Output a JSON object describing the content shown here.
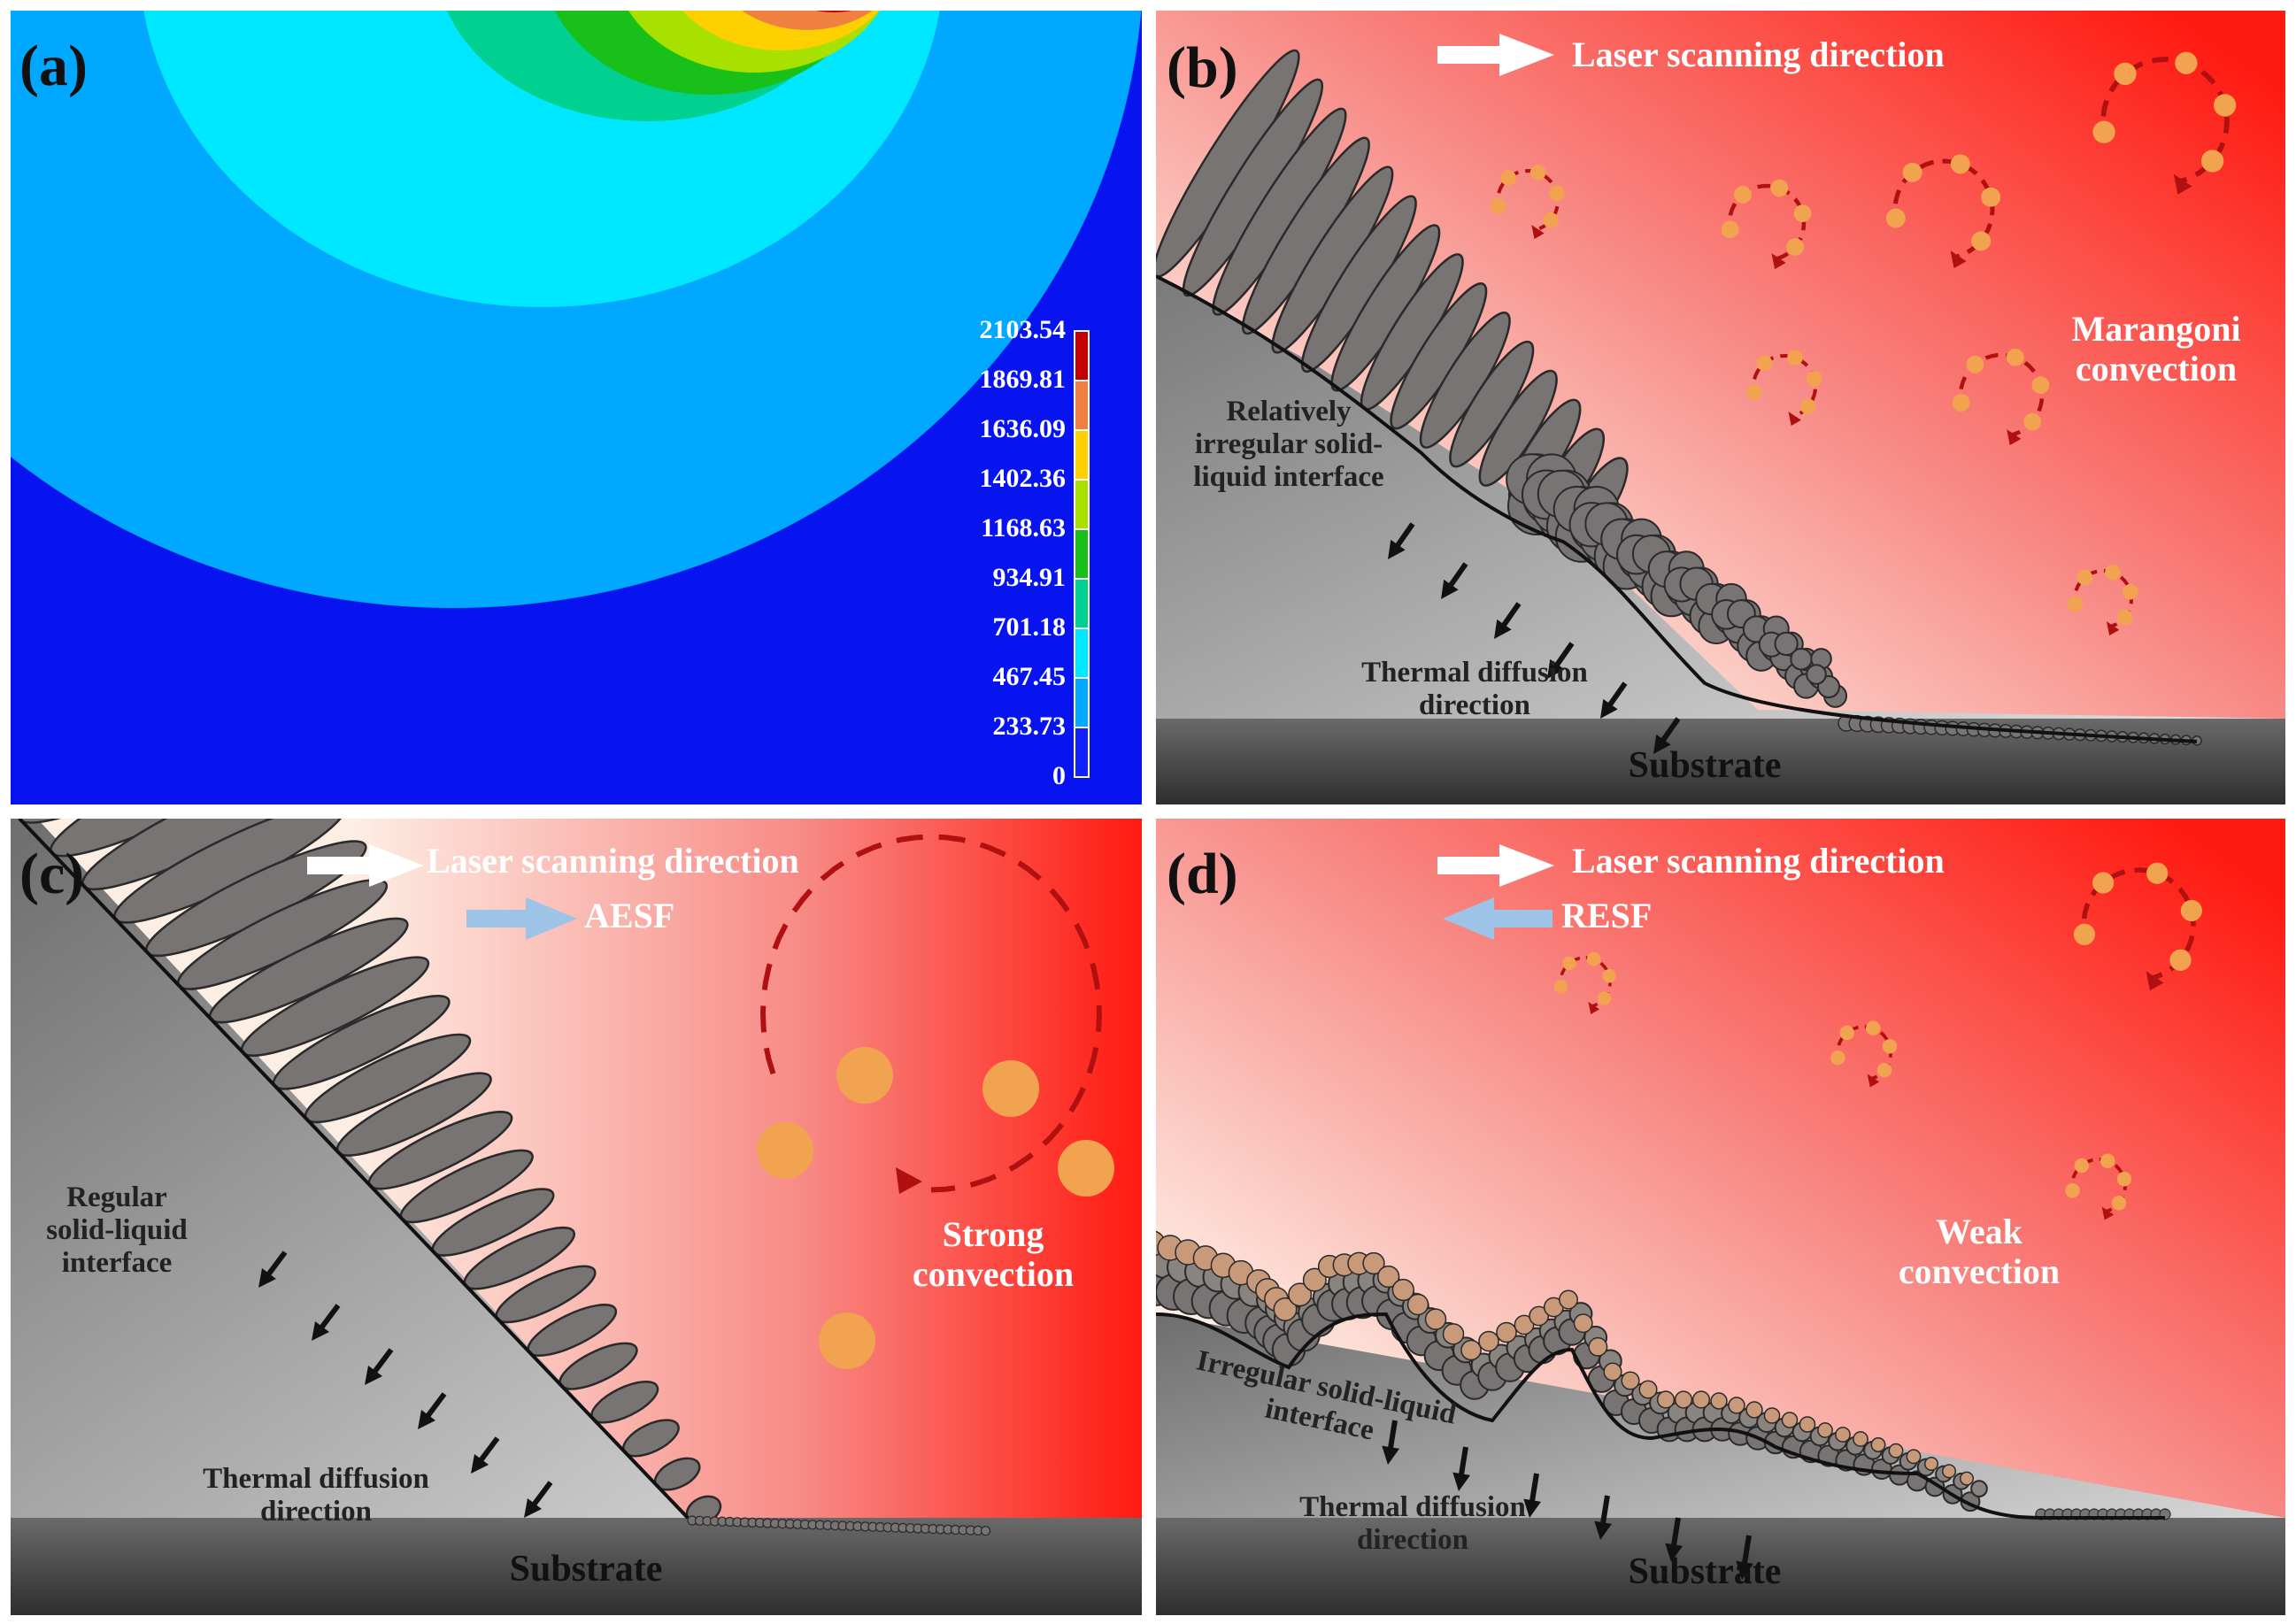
{
  "panels": {
    "a": {
      "label": "(a)",
      "legend": [
        "2103.54",
        "1869.81",
        "1636.09",
        "1402.36",
        "1168.63",
        "934.91",
        "701.18",
        "467.45",
        "233.73",
        "0"
      ],
      "legend_colors": [
        "#c40000",
        "#f08040",
        "#ffd000",
        "#a8e000",
        "#19c019",
        "#00d090",
        "#00e8ff",
        "#00a8ff",
        "#1020ff"
      ]
    },
    "b": {
      "label": "(b)",
      "laser": "Laser scanning direction",
      "marangoni": [
        "Marangoni",
        "convection"
      ],
      "interface": [
        "Relatively",
        "irregular solid-",
        "liquid interface"
      ],
      "thermal": [
        "Thermal diffusion",
        "direction"
      ],
      "substrate": "Substrate"
    },
    "c": {
      "label": "(c)",
      "laser": "Laser scanning direction",
      "esf": "AESF",
      "convection": [
        "Strong",
        "convection"
      ],
      "interface": [
        "Regular",
        "solid-liquid",
        "interface"
      ],
      "thermal": [
        "Thermal diffusion",
        "direction"
      ],
      "substrate": "Substrate"
    },
    "d": {
      "label": "(d)",
      "laser": "Laser scanning direction",
      "esf": "RESF",
      "convection": [
        "Weak",
        "convection"
      ],
      "interface": [
        "Irregular solid-liquid",
        "interface"
      ],
      "thermal": [
        "Thermal diffusion",
        "direction"
      ],
      "substrate": "Substrate"
    }
  },
  "colors": {
    "melt_red": "#ff1a10",
    "melt_light": "#fdeee4",
    "grain": "#787474",
    "grain_edge": "#2a2a2a",
    "substrate": "#4a4a4a",
    "droplet": "#f2a350",
    "arrow_dash": "#b01010",
    "esf_arrow": "#9dc3e6"
  }
}
